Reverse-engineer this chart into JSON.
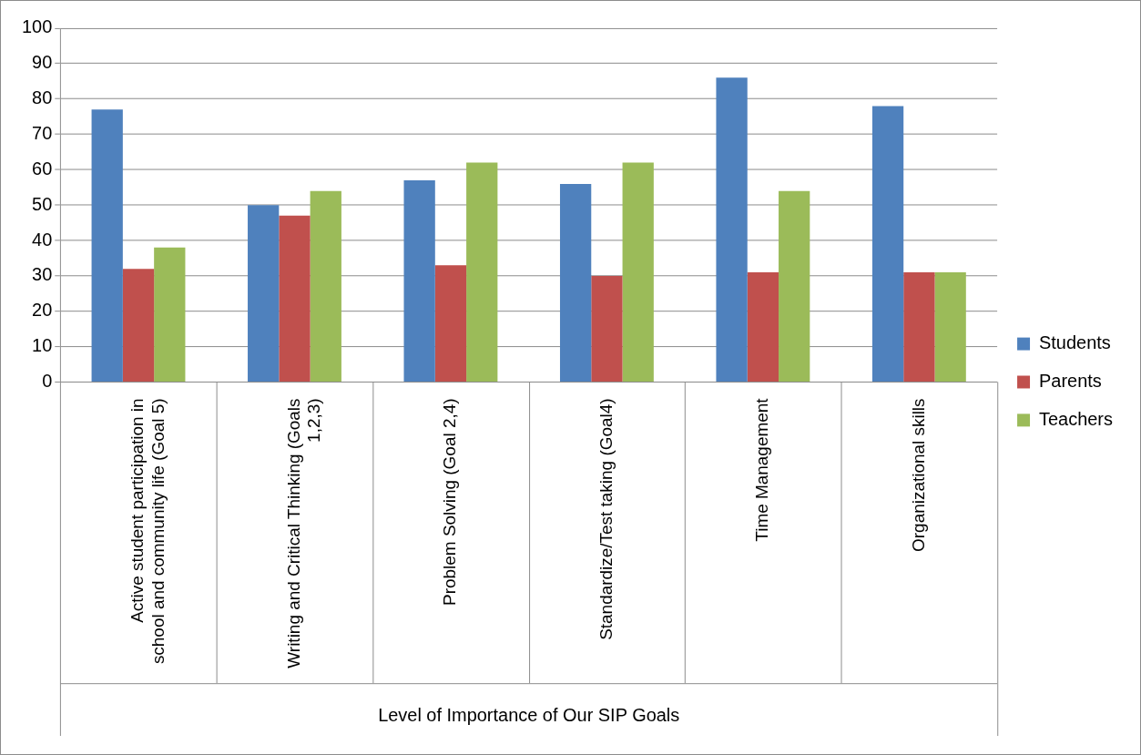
{
  "chart_data": {
    "type": "bar",
    "xlabel": "Level of Importance of Our SIP Goals",
    "categories": [
      "Active student participation in school and community life (Goal 5)",
      "Writing and Critical Thinking (Goals 1,2,3)",
      "Problem Solving (Goal 2,4)",
      "Standardize/Test taking (Goal4)",
      "Time Management",
      "Organizational skills"
    ],
    "series": [
      {
        "name": "Students",
        "color": "#4f81bd",
        "values": [
          77,
          50,
          57,
          56,
          86,
          78
        ]
      },
      {
        "name": "Parents",
        "color": "#c0504d",
        "values": [
          32,
          47,
          33,
          30,
          31,
          31
        ]
      },
      {
        "name": "Teachers",
        "color": "#9bbb59",
        "values": [
          38,
          54,
          62,
          62,
          54,
          31
        ]
      }
    ],
    "ylim": [
      0,
      100
    ],
    "yticks": [
      0,
      10,
      20,
      30,
      40,
      50,
      60,
      70,
      80,
      90,
      100
    ],
    "grid": "y",
    "legend": "right"
  }
}
